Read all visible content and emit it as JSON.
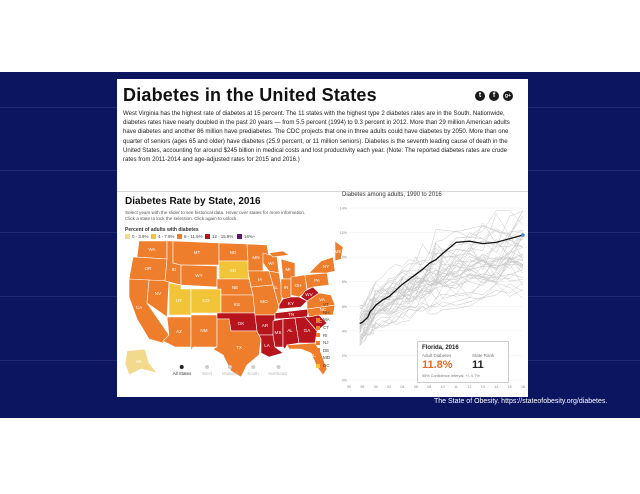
{
  "slide": {
    "caption": "The State of Obesity. https://stateofobesity.org/diabetes."
  },
  "article": {
    "title": "Diabetes in the United States",
    "social": [
      {
        "icon": "twitter-icon",
        "glyph": "t"
      },
      {
        "icon": "facebook-icon",
        "glyph": "f"
      },
      {
        "icon": "google-plus-icon",
        "glyph": "g+"
      }
    ],
    "intro": "West Virginia has the highest rate of diabetes at 15 percent. The 11 states with the highest type 2 diabetes rates are in the South. Nationwide, diabetes rates have nearly doubled in the past 20 years — from 5.5 percent (1994) to 9.3 percent in 2012. More than 29 million American adults have diabetes and another 86 million have prediabetes. The CDC projects that one in three adults could have diabetes by 2050. More than one quarter of seniors (ages 65 and older) have diabetes (25.9 percent, or 11 million seniors). Diabetes is the seventh leading cause of death in the United States, accounting for around $245 billion in medical costs and lost productivity each year. (Note: The reported diabetes rates are crude rates from 2011-2014 and age-adjusted rates for 2015 and 2016.)"
  },
  "map_panel": {
    "title": "Diabetes Rate by State, 2016",
    "help": "Select years with the slider to see historical data. Hover over states for more information. Click a state to lock the selection. Click again to unlock.",
    "legend_title": "Percent of adults with diabetes",
    "legend": [
      {
        "label": "0 - 3.9%",
        "color": "#f3d98b"
      },
      {
        "label": "4 - 7.9%",
        "color": "#f2c437"
      },
      {
        "label": "8 - 11.9%",
        "color": "#ee7d2c"
      },
      {
        "label": "12 - 15.9%",
        "color": "#b8141d"
      },
      {
        "label": "16%+",
        "color": "#6a1070"
      }
    ],
    "state_labels": [
      "WA",
      "OR",
      "CA",
      "NV",
      "ID",
      "MT",
      "WY",
      "UT",
      "AZ",
      "CO",
      "NM",
      "ND",
      "SD",
      "NE",
      "KS",
      "OK",
      "TX",
      "MN",
      "IA",
      "MO",
      "AR",
      "LA",
      "WI",
      "IL",
      "MI",
      "IN",
      "OH",
      "KY",
      "TN",
      "MS",
      "AL",
      "GA",
      "FL",
      "SC",
      "NC",
      "VA",
      "WV",
      "PA",
      "NY",
      "ME",
      "AK"
    ],
    "small_states": [
      {
        "label": "VT",
        "color": "#ee7d2c"
      },
      {
        "label": "NH",
        "color": "#ee7d2c"
      },
      {
        "label": "MA",
        "color": "#ee7d2c"
      },
      {
        "label": "CT",
        "color": "#ee7d2c"
      },
      {
        "label": "RI",
        "color": "#ee7d2c"
      },
      {
        "label": "NJ",
        "color": "#ee7d2c"
      },
      {
        "label": "DE",
        "color": "#ee7d2c"
      },
      {
        "label": "MD",
        "color": "#ee7d2c"
      },
      {
        "label": "DC",
        "color": "#f2c437"
      }
    ],
    "slider": [
      {
        "label": "All States",
        "color": "#222222"
      },
      {
        "label": "West",
        "color": "#cfcfcf"
      },
      {
        "label": "Midwest",
        "color": "#cfcfcf"
      },
      {
        "label": "South",
        "color": "#cfcfcf"
      },
      {
        "label": "Northeast",
        "color": "#cfcfcf"
      }
    ]
  },
  "trend_panel": {
    "title": "Diabetes among adults, 1990 to 2016",
    "info": {
      "state": "Florida, 2016",
      "rate_label": "Adult Diabetes",
      "rank_label": "State Rank",
      "rate": "11.8%",
      "rank": "11",
      "ci": "95% Confidence Interval: +/- 0.7%"
    }
  },
  "chart_data": {
    "type": "line",
    "title": "Diabetes among adults, 1990 to 2016",
    "ylim": [
      0,
      14
    ],
    "yticks": [
      "14%",
      "12%",
      "10%",
      "8%",
      "6%",
      "4%",
      "2%",
      "0%"
    ],
    "xticks": [
      "90",
      "95",
      "00",
      "02",
      "04",
      "06",
      "08",
      "10",
      "11",
      "12",
      "13",
      "14",
      "15",
      "16"
    ],
    "highlight": {
      "name": "Florida",
      "x": [
        1994,
        1995,
        1996,
        1997,
        1998,
        1999,
        2000,
        2001,
        2002,
        2003,
        2004,
        2005,
        2006,
        2007,
        2008,
        2009,
        2010,
        2011,
        2012,
        2013,
        2014,
        2015,
        2016
      ],
      "values": [
        4.6,
        4.7,
        4.9,
        5.1,
        5.6,
        5.8,
        6.1,
        6.5,
        6.8,
        7.3,
        7.8,
        8.2,
        8.6,
        9.0,
        9.5,
        9.8,
        10.3,
        11.2,
        11.3,
        11.1,
        11.2,
        11.5,
        11.8
      ]
    },
    "color_highlight": "#111111",
    "color_background_series": "#c8c8c8",
    "color_latest_point": "#3a8dde"
  }
}
